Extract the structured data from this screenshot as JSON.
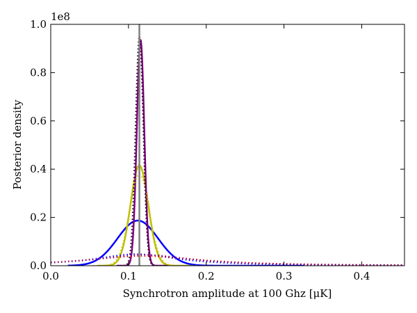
{
  "chart_data": {
    "type": "line",
    "xlabel": "Synchrotron amplitude at 100 Ghz [μK]",
    "ylabel": "Posterior density",
    "y_offset_label": "1e8",
    "xlim": [
      0.0,
      0.455
    ],
    "ylim": [
      0.0,
      1.0
    ],
    "x_ticks": [
      0.0,
      0.1,
      0.2,
      0.3,
      0.4
    ],
    "x_tick_labels": [
      "0.0",
      "0.1",
      "0.2",
      "0.3",
      "0.4"
    ],
    "y_ticks": [
      0.0,
      0.2,
      0.4,
      0.6,
      0.8,
      1.0
    ],
    "y_tick_labels": [
      "0.0",
      "0.2",
      "0.4",
      "0.6",
      "0.8",
      "1.0"
    ],
    "grid": false,
    "true_value_line": {
      "x": 0.114,
      "color": "#808080"
    },
    "series": [
      {
        "style": "solid",
        "color": "#0000ff",
        "shape": "gaussian",
        "center": 0.112,
        "width": 0.026,
        "peak": 0.187,
        "x_range": [
          0.022,
          0.325
        ]
      },
      {
        "style": "solid",
        "color": "#bfbf00",
        "shape": "gaussian",
        "center": 0.114,
        "width": 0.0115,
        "peak": 0.415,
        "x_range": [
          0.06,
          0.18
        ]
      },
      {
        "style": "solid",
        "color": "#800080",
        "shape": "gaussian",
        "center": 0.1155,
        "width": 0.0048,
        "peak": 0.935,
        "x_range": [
          0.085,
          0.15
        ]
      },
      {
        "style": "dotted",
        "color": "#0000ff",
        "shape": "lorentz",
        "center": 0.11,
        "width": 0.065,
        "peak": 0.048,
        "x_range": [
          0.0,
          0.455
        ]
      },
      {
        "style": "dotted",
        "color": "#ff0000",
        "shape": "lorentz",
        "center": 0.12,
        "width": 0.09,
        "peak": 0.04,
        "x_range": [
          0.0,
          0.455
        ]
      },
      {
        "style": "dotted",
        "color": "#bfbf00",
        "shape": "gaussian",
        "center": 0.114,
        "width": 0.0125,
        "peak": 0.38,
        "x_range": [
          0.055,
          0.19
        ]
      },
      {
        "style": "dotted",
        "color": "#000000",
        "shape": "gaussian",
        "center": 0.114,
        "width": 0.005,
        "peak": 0.95,
        "x_range": [
          0.085,
          0.15
        ]
      },
      {
        "style": "dotted",
        "color": "#800080",
        "shape": "lorentz",
        "center": 0.12,
        "width": 0.075,
        "peak": 0.045,
        "x_range": [
          0.0,
          0.455
        ]
      }
    ]
  }
}
